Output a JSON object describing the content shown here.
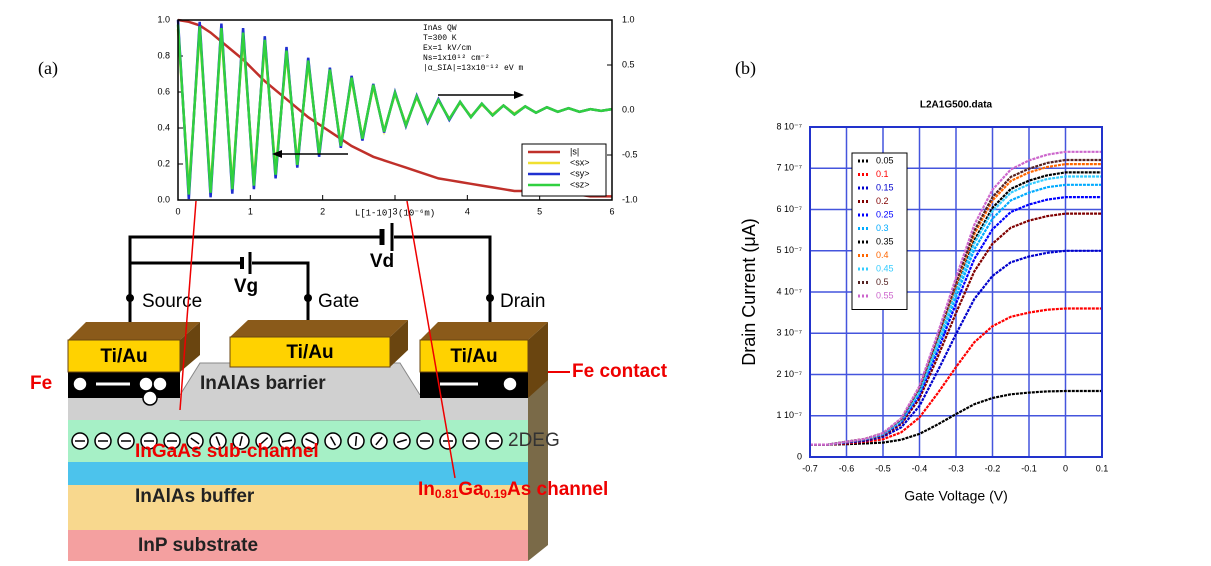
{
  "panel_labels": [
    "(a)",
    "(b)"
  ],
  "chart_data": [
    {
      "type": "line",
      "x_label": "L[1-10] (10⁻⁶m)",
      "annotations": [
        "InAs QW",
        "T=300 K",
        "Ex=1 kV/cm",
        "Ns=1x10¹² cm⁻²",
        "|α_SIA|=13x10⁻¹² eV m"
      ],
      "x": [
        0,
        0.15,
        0.3,
        0.45,
        0.6,
        0.75,
        0.9,
        1.05,
        1.2,
        1.35,
        1.5,
        1.65,
        1.8,
        1.95,
        2.1,
        2.25,
        2.4,
        2.55,
        2.7,
        2.85,
        3.0,
        3.15,
        3.3,
        3.45,
        3.6,
        3.75,
        3.9,
        4.05,
        4.2,
        4.35,
        4.5,
        4.65,
        4.8,
        4.95,
        5.1,
        5.25,
        5.4,
        5.55,
        5.7,
        5.85,
        6.0
      ],
      "xlim": [
        0,
        6
      ],
      "xticks": [
        0,
        1,
        2,
        3,
        4,
        5,
        6
      ],
      "ylim": [
        0,
        1
      ],
      "yticks": [
        {
          "value": 0,
          "label": "0.0"
        },
        {
          "value": 0.2,
          "label": "0.2"
        },
        {
          "value": 0.4,
          "label": "0.4"
        },
        {
          "value": 0.6,
          "label": "0.6"
        },
        {
          "value": 0.8,
          "label": "0.8"
        },
        {
          "value": 1,
          "label": "1.0"
        }
      ],
      "y2lim": [
        -1,
        1
      ],
      "y2ticks": [
        {
          "value": -1,
          "label": "-1.0"
        },
        {
          "value": -0.5,
          "label": "-0.5"
        },
        {
          "value": 0,
          "label": "0.0"
        },
        {
          "value": 0.5,
          "label": "0.5"
        },
        {
          "value": 1,
          "label": "1.0"
        }
      ],
      "grid": false,
      "legend": "lower right",
      "series": [
        {
          "name": "|s|",
          "color": "#c0302a",
          "values": [
            1.0,
            0.99,
            0.97,
            0.93,
            0.88,
            0.83,
            0.78,
            0.72,
            0.66,
            0.61,
            0.56,
            0.51,
            0.46,
            0.42,
            0.38,
            0.34,
            0.3,
            0.27,
            0.24,
            0.22,
            0.2,
            0.18,
            0.16,
            0.14,
            0.12,
            0.11,
            0.1,
            0.09,
            0.08,
            0.07,
            0.06,
            0.05,
            0.05,
            0.04,
            0.04,
            0.03,
            0.03,
            0.03,
            0.02,
            0.02,
            0.02
          ]
        },
        {
          "name": "<sx>",
          "color": "#f0e030",
          "axis": "y2",
          "values": [
            0.9,
            -0.89,
            0.88,
            -0.87,
            0.86,
            -0.84,
            0.82,
            -0.79,
            0.74,
            -0.68,
            0.63,
            -0.58,
            0.52,
            -0.47,
            0.42,
            -0.38,
            0.34,
            -0.31,
            0.26,
            -0.23,
            0.18,
            -0.16,
            0.14,
            -0.13,
            0.11,
            -0.1,
            0.08,
            -0.07,
            0.06,
            -0.05,
            0.05,
            -0.04,
            0.04,
            -0.03,
            0.03,
            -0.02,
            0.02,
            -0.02,
            0.01,
            -0.01,
            0.01
          ]
        },
        {
          "name": "<sy>",
          "color": "#2030d0",
          "axis": "y2",
          "values": [
            1.0,
            -0.99,
            0.98,
            -0.97,
            0.96,
            -0.93,
            0.91,
            -0.88,
            0.82,
            -0.76,
            0.7,
            -0.64,
            0.58,
            -0.52,
            0.47,
            -0.42,
            0.38,
            -0.34,
            0.29,
            -0.25,
            0.2,
            -0.18,
            0.16,
            -0.14,
            0.12,
            -0.11,
            0.09,
            -0.08,
            0.07,
            -0.06,
            0.05,
            -0.05,
            0.04,
            -0.03,
            0.03,
            -0.02,
            0.02,
            -0.02,
            0.01,
            -0.01,
            0.01
          ]
        },
        {
          "name": "<sz>",
          "color": "#30d040",
          "axis": "y2",
          "values": [
            0.95,
            -0.94,
            0.93,
            -0.92,
            0.91,
            -0.88,
            0.86,
            -0.84,
            0.78,
            -0.72,
            0.66,
            -0.61,
            0.55,
            -0.49,
            0.45,
            -0.4,
            0.36,
            -0.32,
            0.28,
            -0.24,
            0.19,
            -0.17,
            0.15,
            -0.13,
            0.11,
            -0.1,
            0.09,
            -0.08,
            0.07,
            -0.06,
            0.05,
            -0.05,
            0.04,
            -0.03,
            0.03,
            -0.02,
            0.02,
            -0.02,
            0.01,
            -0.01,
            0.01
          ]
        }
      ]
    },
    {
      "type": "line",
      "title": "L2A1G500.data",
      "x_label": "Gate Voltage (V)",
      "y_label": "Drain Current (μA)",
      "x": [
        -0.7,
        -0.65,
        -0.6,
        -0.55,
        -0.5,
        -0.45,
        -0.4,
        -0.35,
        -0.3,
        -0.25,
        -0.2,
        -0.15,
        -0.1,
        -0.05,
        0,
        0.05,
        0.1
      ],
      "xlim": [
        -0.7,
        0.1
      ],
      "xticks": [
        -0.7,
        -0.6,
        -0.5,
        -0.4,
        -0.3,
        -0.2,
        -0.1,
        0,
        0.1
      ],
      "ylim": [
        0,
        8e-07
      ],
      "yticks": [
        0,
        {
          "value": 1e-07,
          "label": "1 10⁻⁷"
        },
        {
          "value": 2e-07,
          "label": "2 10⁻⁷"
        },
        {
          "value": 3e-07,
          "label": "3 10⁻⁷"
        },
        {
          "value": 4e-07,
          "label": "4 10⁻⁷"
        },
        {
          "value": 5e-07,
          "label": "5 10⁻⁷"
        },
        {
          "value": 6e-07,
          "label": "6 10⁻⁷"
        },
        {
          "value": 7e-07,
          "label": "7 10⁻⁷"
        },
        {
          "value": 8e-07,
          "label": "8 10⁻⁷"
        }
      ],
      "grid": true,
      "legend": "upper left",
      "series": [
        {
          "name": "0.05",
          "color": "#000000",
          "values": [
            3e-08,
            3e-08,
            3.1e-08,
            3.3e-08,
            3.5e-08,
            4.2e-08,
            5.6e-08,
            7.9e-08,
            1.04e-07,
            1.28e-07,
            1.43e-07,
            1.52e-07,
            1.56e-07,
            1.59e-07,
            1.6e-07,
            1.6e-07,
            1.6e-07
          ]
        },
        {
          "name": "0.1",
          "color": "#ff0000",
          "values": [
            3e-08,
            3e-08,
            3.3e-08,
            3.7e-08,
            4.3e-08,
            6e-08,
            9.6e-08,
            1.55e-07,
            2.18e-07,
            2.78e-07,
            3.17e-07,
            3.4e-07,
            3.5e-07,
            3.57e-07,
            3.6e-07,
            3.6e-07,
            3.6e-07
          ]
        },
        {
          "name": "0.15",
          "color": "#0000cc",
          "values": [
            3e-08,
            3e-08,
            3.5e-08,
            3.9e-08,
            4.9e-08,
            7.2e-08,
            1.24e-07,
            2.09e-07,
            2.98e-07,
            3.83e-07,
            4.39e-07,
            4.72e-07,
            4.86e-07,
            4.95e-07,
            5e-07,
            5e-07,
            5e-07
          ]
        },
        {
          "name": "0.2",
          "color": "#800000",
          "values": [
            3e-08,
            3e-08,
            3.6e-08,
            4.1e-08,
            5.2e-08,
            8e-08,
            1.42e-07,
            2.43e-07,
            3.49e-07,
            4.5e-07,
            5.17e-07,
            5.56e-07,
            5.73e-07,
            5.84e-07,
            5.9e-07,
            5.9e-07,
            5.9e-07
          ]
        },
        {
          "name": "0.25",
          "color": "#0000ff",
          "values": [
            3e-08,
            3e-08,
            3.6e-08,
            4.2e-08,
            5.4e-08,
            8.4e-08,
            1.5e-07,
            2.58e-07,
            3.72e-07,
            4.8e-07,
            5.52e-07,
            5.94e-07,
            6.12e-07,
            6.24e-07,
            6.3e-07,
            6.3e-07,
            6.3e-07
          ]
        },
        {
          "name": "0.3",
          "color": "#00aaff",
          "values": [
            3e-08,
            3e-08,
            3.6e-08,
            4.3e-08,
            5.5e-08,
            8.7e-08,
            1.56e-07,
            2.69e-07,
            3.89e-07,
            5.03e-07,
            5.78e-07,
            6.22e-07,
            6.41e-07,
            6.54e-07,
            6.6e-07,
            6.6e-07,
            6.6e-07
          ]
        },
        {
          "name": "0.35",
          "color": "#000000",
          "values": [
            3e-08,
            3e-08,
            3.7e-08,
            4.3e-08,
            5.6e-08,
            8.9e-08,
            1.62e-07,
            2.81e-07,
            4.06e-07,
            5.25e-07,
            6.04e-07,
            6.5e-07,
            6.7e-07,
            6.83e-07,
            6.9e-07,
            6.9e-07,
            6.9e-07
          ]
        },
        {
          "name": "0.4",
          "color": "#ff6600",
          "values": [
            3e-08,
            3e-08,
            3.7e-08,
            4.4e-08,
            5.7e-08,
            9.1e-08,
            1.66e-07,
            2.88e-07,
            4.18e-07,
            5.4e-07,
            6.22e-07,
            6.69e-07,
            6.9e-07,
            7.03e-07,
            7.1e-07,
            7.1e-07,
            7.1e-07
          ]
        },
        {
          "name": "0.45",
          "color": "#33ccff",
          "values": [
            3e-08,
            3e-08,
            3.7e-08,
            4.3e-08,
            5.6e-08,
            8.9e-08,
            1.6e-07,
            2.77e-07,
            4.01e-07,
            5.18e-07,
            5.96e-07,
            6.41e-07,
            6.61e-07,
            6.74e-07,
            6.8e-07,
            6.8e-07,
            6.8e-07
          ]
        },
        {
          "name": "0.5",
          "color": "#552222",
          "values": [
            3e-08,
            3e-08,
            3.7e-08,
            4.4e-08,
            5.8e-08,
            9.2e-08,
            1.68e-07,
            2.92e-07,
            4.23e-07,
            5.48e-07,
            6.3e-07,
            6.79e-07,
            6.99e-07,
            7.13e-07,
            7.2e-07,
            7.2e-07,
            7.2e-07
          ]
        },
        {
          "name": "0.55",
          "color": "#cc66cc",
          "values": [
            3e-08,
            3e-08,
            3.7e-08,
            4.4e-08,
            5.8e-08,
            9.4e-08,
            1.72e-07,
            3e-07,
            4.35e-07,
            5.63e-07,
            6.48e-07,
            6.97e-07,
            7.19e-07,
            7.33e-07,
            7.4e-07,
            7.4e-07,
            7.4e-07
          ]
        }
      ]
    }
  ],
  "diagram": {
    "vd": "Vd",
    "vg": "Vg",
    "source": "Source",
    "gate": "Gate",
    "drain": "Drain",
    "contacts": [
      "Ti/Au",
      "Ti/Au",
      "Ti/Au"
    ],
    "fe": "Fe",
    "fe_contact": "Fe contact",
    "barrier": "InAlAs barrier",
    "two_deg": "2DEG",
    "sub_channel": "InGaAs sub-channel",
    "buffer": "InAlAs buffer",
    "substrate": "InP substrate",
    "channel": [
      "In",
      "0.81",
      "Ga",
      "0.19",
      "As channel"
    ]
  }
}
